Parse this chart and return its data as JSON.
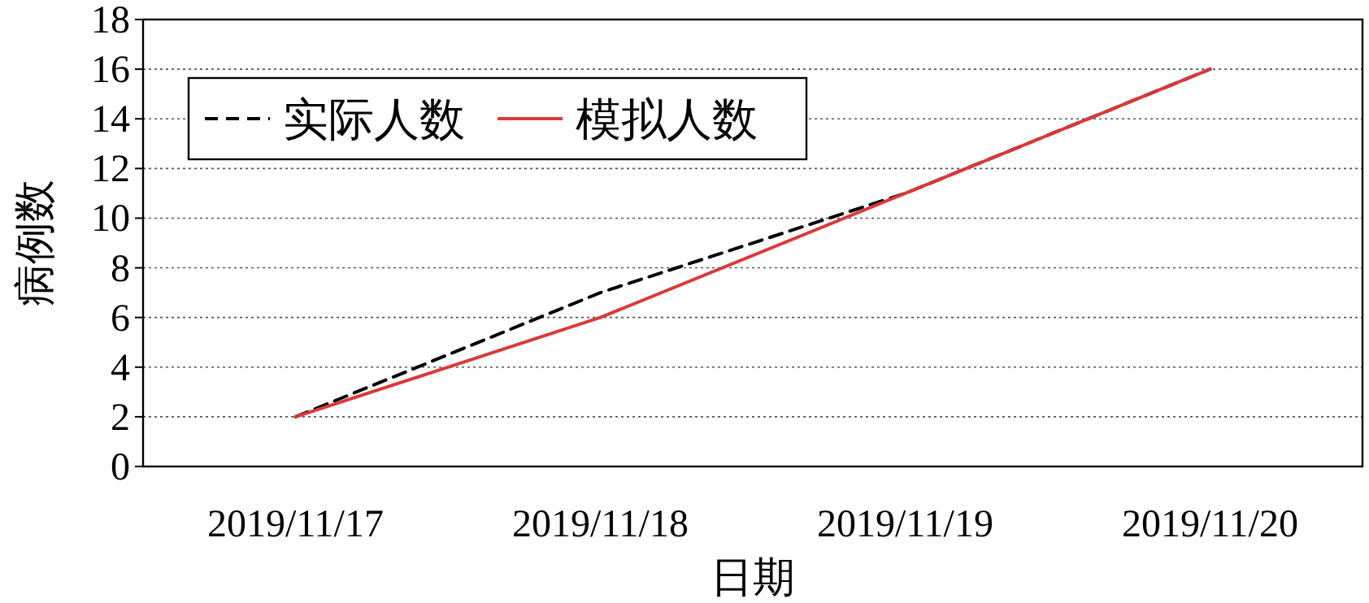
{
  "chart_data": {
    "type": "line",
    "xlabel": "日期",
    "ylabel": "病例数",
    "categories": [
      "2019/11/17",
      "2019/11/18",
      "2019/11/19",
      "2019/11/20"
    ],
    "series": [
      {
        "name": "实际人数",
        "color": "#000000",
        "line_style": "dashed",
        "values": [
          2,
          7,
          11,
          16
        ]
      },
      {
        "name": "模拟人数",
        "color": "#d93a3a",
        "line_style": "solid",
        "values": [
          2,
          6,
          11,
          16
        ]
      }
    ],
    "ylim": [
      0,
      18
    ],
    "yticks": [
      0,
      2,
      4,
      6,
      8,
      10,
      12,
      14,
      16,
      18
    ],
    "grid": "y",
    "legend": "top left"
  }
}
